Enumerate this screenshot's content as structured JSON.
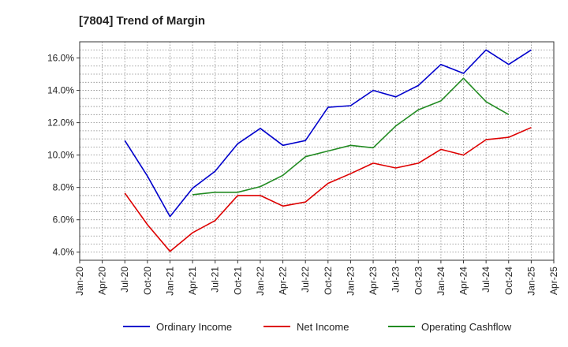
{
  "chart_data": {
    "type": "line",
    "title": "[7804]  Trend of Margin",
    "xlabel": "",
    "ylabel": "",
    "x_ticks": [
      "Jan-20",
      "Apr-20",
      "Jul-20",
      "Oct-20",
      "Jan-21",
      "Apr-21",
      "Jul-21",
      "Oct-21",
      "Jan-22",
      "Apr-22",
      "Jul-22",
      "Oct-22",
      "Jan-23",
      "Apr-23",
      "Jul-23",
      "Oct-23",
      "Jan-24",
      "Apr-24",
      "Jul-24",
      "Oct-24",
      "Jan-25",
      "Apr-25"
    ],
    "y_ticks": [
      "4.0%",
      "6.0%",
      "8.0%",
      "10.0%",
      "12.0%",
      "14.0%",
      "16.0%"
    ],
    "ylim": [
      3.5,
      17.0
    ],
    "grid": true,
    "legend_position": "bottom",
    "series": [
      {
        "name": "Ordinary Income",
        "color": "#0000cc",
        "x": [
          "Jul-20",
          "Oct-20",
          "Jan-21",
          "Apr-21",
          "Jul-21",
          "Oct-21",
          "Jan-22",
          "Apr-22",
          "Jul-22",
          "Oct-22",
          "Jan-23",
          "Apr-23",
          "Jul-23",
          "Oct-23",
          "Jan-24",
          "Apr-24",
          "Jul-24",
          "Oct-24",
          "Jan-25"
        ],
        "values": [
          10.9,
          8.7,
          6.2,
          7.95,
          9.0,
          10.7,
          11.65,
          10.6,
          10.9,
          12.95,
          13.05,
          14.0,
          13.6,
          14.3,
          15.6,
          15.05,
          16.5,
          15.6,
          16.5
        ]
      },
      {
        "name": "Net Income",
        "color": "#dd0000",
        "x": [
          "Jul-20",
          "Oct-20",
          "Jan-21",
          "Apr-21",
          "Jul-21",
          "Oct-21",
          "Jan-22",
          "Apr-22",
          "Jul-22",
          "Oct-22",
          "Jan-23",
          "Apr-23",
          "Jul-23",
          "Oct-23",
          "Jan-24",
          "Apr-24",
          "Jul-24",
          "Oct-24",
          "Jan-25"
        ],
        "values": [
          7.65,
          5.7,
          4.05,
          5.2,
          5.95,
          7.5,
          7.5,
          6.85,
          7.1,
          8.25,
          8.85,
          9.5,
          9.2,
          9.5,
          10.35,
          10.0,
          10.95,
          11.1,
          11.7
        ]
      },
      {
        "name": "Operating Cashflow",
        "color": "#228b22",
        "x": [
          "Apr-21",
          "Jul-21",
          "Oct-21",
          "Jan-22",
          "Apr-22",
          "Jul-22",
          "Oct-22",
          "Jan-23",
          "Apr-23",
          "Jul-23",
          "Oct-23",
          "Jan-24",
          "Apr-24",
          "Jul-24",
          "Oct-24"
        ],
        "values": [
          7.55,
          7.7,
          7.7,
          8.05,
          8.75,
          9.9,
          10.25,
          10.6,
          10.45,
          11.8,
          12.8,
          13.35,
          14.75,
          13.3,
          12.5
        ]
      }
    ]
  }
}
